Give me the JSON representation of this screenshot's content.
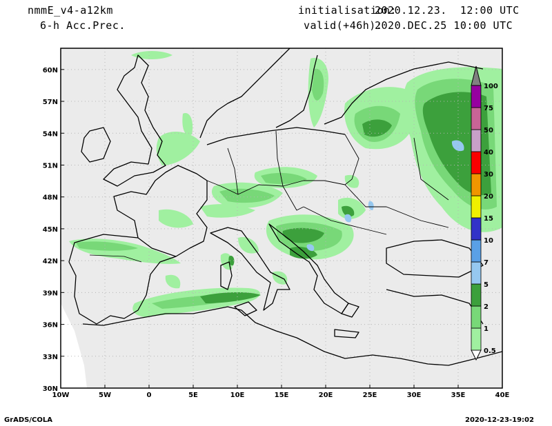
{
  "header": {
    "model": "nmmE_v4-a12km",
    "field": "6-h Acc.Prec.",
    "init_label": "initialisation:",
    "init_value": "2020.12.23.  12:00 UTC",
    "valid_label": "valid(+46h):",
    "valid_value": "2020.DEC.25 10:00 UTC"
  },
  "footer": {
    "left": "GrADS/COLA",
    "right": "2020-12-23-19:02"
  },
  "map": {
    "lat_labels": [
      "30N",
      "33N",
      "36N",
      "39N",
      "42N",
      "45N",
      "48N",
      "51N",
      "54N",
      "57N",
      "60N"
    ],
    "lon_labels": [
      "10W",
      "5W",
      "0",
      "5E",
      "10E",
      "15E",
      "20E",
      "25E",
      "30E",
      "35E",
      "40E"
    ],
    "colors": {
      "background": "#ebebeb",
      "coast": "#000000",
      "grid": "#b4b4b4"
    }
  },
  "legend": {
    "levels": [
      {
        "label": "0.5",
        "color": "#a0f0a0"
      },
      {
        "label": "1",
        "color": "#78d878"
      },
      {
        "label": "2",
        "color": "#3ca03c"
      },
      {
        "label": "5",
        "color": "#96c8f0"
      },
      {
        "label": "7",
        "color": "#5aa0e6"
      },
      {
        "label": "10",
        "color": "#3232c8"
      },
      {
        "label": "15",
        "color": "#f0f000"
      },
      {
        "label": "20",
        "color": "#f09600"
      },
      {
        "label": "30",
        "color": "#fa0000"
      },
      {
        "label": "40",
        "color": "#c8a0c8"
      },
      {
        "label": "50",
        "color": "#c86496"
      },
      {
        "label": "75",
        "color": "#9600a0"
      },
      {
        "label": "100",
        "color": "#808080"
      }
    ]
  }
}
